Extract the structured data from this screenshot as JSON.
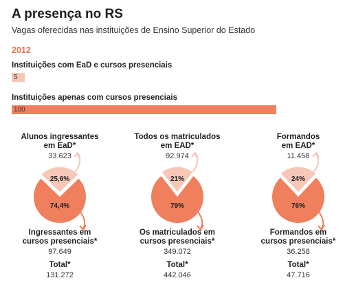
{
  "header": {
    "title": "A presença no RS",
    "subtitle": "Vagas oferecidas nas instituições de Ensino Superior do Estado",
    "year": "2012"
  },
  "colors": {
    "accent": "#ef7f5d",
    "light": "#f6c7b6",
    "year": "#e4744f"
  },
  "bars_data": {
    "type": "bar",
    "max": 100,
    "rows": [
      {
        "label": "Instituições com EaD e cursos presenciais",
        "value": 5,
        "value_label": "5"
      },
      {
        "label": "Instituições apenas com cursos presenciais",
        "value": 100,
        "value_label": "100"
      }
    ]
  },
  "chart_data": [
    {
      "type": "pie",
      "top_label": [
        "Alunos ingressantes",
        "em EaD*"
      ],
      "top_value": "33.623",
      "slices": [
        {
          "label": "em EaD",
          "value": 25.6,
          "display": "25,6%"
        },
        {
          "label": "cursos presenciais",
          "value": 74.4,
          "display": "74,4%"
        }
      ],
      "bottom_label": [
        "Ingressantes em",
        "cursos presenciais*"
      ],
      "bottom_value": "97.649",
      "total_label": "Total*",
      "total_value": "131.272"
    },
    {
      "type": "pie",
      "top_label": [
        "Todos os matriculados",
        "em EAD*"
      ],
      "top_value": "92.974",
      "slices": [
        {
          "label": "em EAD",
          "value": 21,
          "display": "21%"
        },
        {
          "label": "cursos presenciais",
          "value": 79,
          "display": "79%"
        }
      ],
      "bottom_label": [
        "Os matriculados em",
        "cursos presenciais*"
      ],
      "bottom_value": "349.072",
      "total_label": "Total*",
      "total_value": "442.046"
    },
    {
      "type": "pie",
      "top_label": [
        "Formandos",
        "em EAD*"
      ],
      "top_value": "11.458",
      "slices": [
        {
          "label": "em EAD",
          "value": 24,
          "display": "24%"
        },
        {
          "label": "cursos presenciais",
          "value": 76,
          "display": "76%"
        }
      ],
      "bottom_label": [
        "Formandos em",
        "cursos presenciais*"
      ],
      "bottom_value": "36.258",
      "total_label": "Total*",
      "total_value": "47.716"
    }
  ]
}
